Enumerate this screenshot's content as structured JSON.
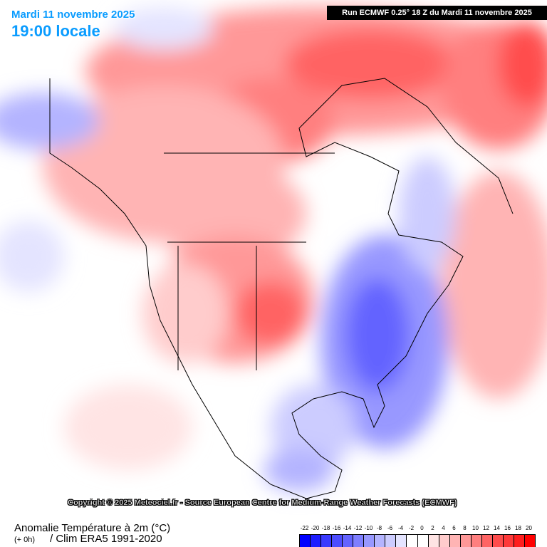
{
  "header": {
    "date": "Mardi 11 novembre 2025",
    "time": "19:00 locale",
    "run": "Run ECMWF 0.25° 18 Z du Mardi 11 novembre 2025"
  },
  "copyright": "Copyright © 2025 Meteociel.fr - Source European Centre for Medium-Range Weather Forecasts (ECMWF)",
  "footer": {
    "parameter": "Anomalie Température à 2m (°C)",
    "lead": "(+ 0h)",
    "climatology": "/ Clim ERA5 1991-2020"
  },
  "legend": {
    "labels": [
      "-22",
      "-20",
      "-18",
      "-16",
      "-14",
      "-12",
      "-10",
      "-8",
      "-6",
      "-4",
      "-2",
      "0",
      "2",
      "4",
      "6",
      "8",
      "10",
      "12",
      "14",
      "16",
      "18",
      "20"
    ],
    "colors": [
      "#0000ff",
      "#1e1eff",
      "#3a3aff",
      "#4d4dff",
      "#6464ff",
      "#7f7fff",
      "#9898ff",
      "#b4b4ff",
      "#ccccff",
      "#e4e4ff",
      "#ffffff",
      "#ffffff",
      "#ffe4e4",
      "#ffcccc",
      "#ffb4b4",
      "#ff9898",
      "#ff7f7f",
      "#ff6464",
      "#ff4d4d",
      "#ff3a3a",
      "#ff1e1e",
      "#ff0000"
    ]
  }
}
